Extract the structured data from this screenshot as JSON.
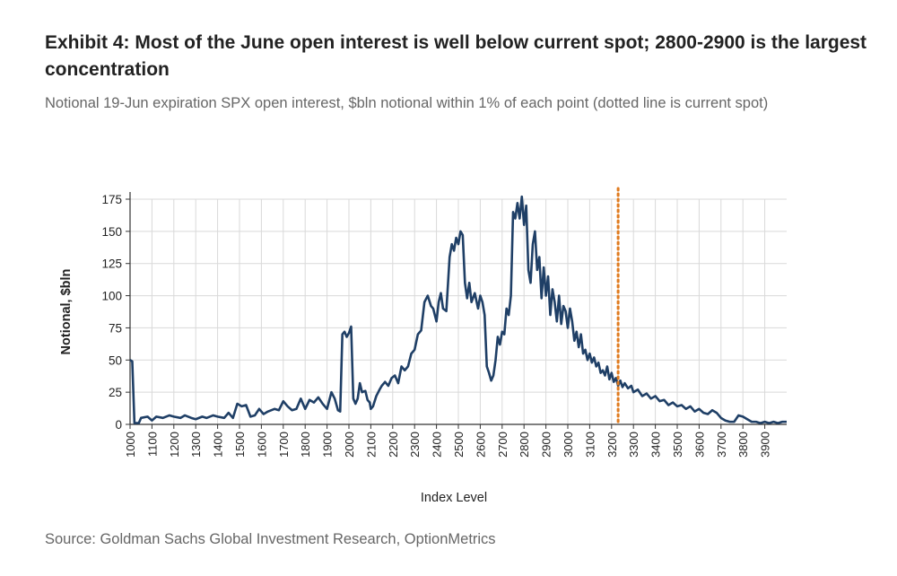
{
  "header": {
    "title": "Exhibit 4: Most of the June open interest is well below current spot; 2800-2900 is the largest concentration",
    "subtitle": "Notional 19-Jun expiration SPX open interest, $bln notional within 1% of each point (dotted line is current spot)"
  },
  "footer": {
    "source": "Source: Goldman Sachs Global Investment Research, OptionMetrics"
  },
  "chart_data": {
    "type": "line",
    "xlabel": "Index Level",
    "ylabel": "Notional, $bln",
    "xlim": [
      1000,
      4000
    ],
    "ylim": [
      0,
      175
    ],
    "y_ticks": [
      0,
      25,
      50,
      75,
      100,
      125,
      150,
      175
    ],
    "x_ticks": [
      1000,
      1100,
      1200,
      1300,
      1400,
      1500,
      1600,
      1700,
      1800,
      1900,
      2000,
      2100,
      2200,
      2300,
      2400,
      2500,
      2600,
      2700,
      2800,
      2900,
      3000,
      3100,
      3200,
      3300,
      3400,
      3500,
      3600,
      3700,
      3800,
      3900
    ],
    "grid": true,
    "line_color": "#1f3f66",
    "spot_line": {
      "x": 3230,
      "color": "#e07b1f",
      "style": "dotted"
    },
    "series": [
      {
        "points": [
          [
            1000,
            50
          ],
          [
            1010,
            49
          ],
          [
            1020,
            1
          ],
          [
            1040,
            1
          ],
          [
            1050,
            5
          ],
          [
            1080,
            6
          ],
          [
            1100,
            3
          ],
          [
            1120,
            6
          ],
          [
            1150,
            5
          ],
          [
            1180,
            7
          ],
          [
            1200,
            6
          ],
          [
            1230,
            5
          ],
          [
            1250,
            7
          ],
          [
            1280,
            5
          ],
          [
            1300,
            4
          ],
          [
            1330,
            6
          ],
          [
            1350,
            5
          ],
          [
            1380,
            7
          ],
          [
            1400,
            6
          ],
          [
            1430,
            5
          ],
          [
            1450,
            9
          ],
          [
            1470,
            5
          ],
          [
            1490,
            16
          ],
          [
            1510,
            14
          ],
          [
            1530,
            15
          ],
          [
            1550,
            6
          ],
          [
            1570,
            7
          ],
          [
            1590,
            12
          ],
          [
            1610,
            8
          ],
          [
            1630,
            10
          ],
          [
            1660,
            12
          ],
          [
            1680,
            11
          ],
          [
            1700,
            18
          ],
          [
            1720,
            14
          ],
          [
            1740,
            11
          ],
          [
            1760,
            12
          ],
          [
            1780,
            20
          ],
          [
            1800,
            12
          ],
          [
            1820,
            19
          ],
          [
            1840,
            17
          ],
          [
            1860,
            21
          ],
          [
            1880,
            16
          ],
          [
            1900,
            12
          ],
          [
            1920,
            25
          ],
          [
            1935,
            20
          ],
          [
            1950,
            11
          ],
          [
            1960,
            10
          ],
          [
            1970,
            70
          ],
          [
            1980,
            72
          ],
          [
            1990,
            68
          ],
          [
            2000,
            71
          ],
          [
            2010,
            76
          ],
          [
            2020,
            20
          ],
          [
            2030,
            16
          ],
          [
            2040,
            20
          ],
          [
            2050,
            32
          ],
          [
            2060,
            25
          ],
          [
            2075,
            26
          ],
          [
            2085,
            19
          ],
          [
            2095,
            17
          ],
          [
            2100,
            12
          ],
          [
            2110,
            14
          ],
          [
            2125,
            22
          ],
          [
            2140,
            27
          ],
          [
            2150,
            30
          ],
          [
            2165,
            33
          ],
          [
            2180,
            30
          ],
          [
            2195,
            36
          ],
          [
            2210,
            38
          ],
          [
            2225,
            32
          ],
          [
            2240,
            45
          ],
          [
            2255,
            42
          ],
          [
            2270,
            45
          ],
          [
            2285,
            55
          ],
          [
            2300,
            58
          ],
          [
            2315,
            70
          ],
          [
            2330,
            73
          ],
          [
            2345,
            95
          ],
          [
            2360,
            100
          ],
          [
            2375,
            92
          ],
          [
            2385,
            90
          ],
          [
            2400,
            80
          ],
          [
            2410,
            95
          ],
          [
            2420,
            102
          ],
          [
            2430,
            90
          ],
          [
            2445,
            88
          ],
          [
            2460,
            130
          ],
          [
            2470,
            140
          ],
          [
            2480,
            135
          ],
          [
            2490,
            145
          ],
          [
            2500,
            140
          ],
          [
            2510,
            150
          ],
          [
            2520,
            147
          ],
          [
            2530,
            110
          ],
          [
            2540,
            98
          ],
          [
            2550,
            110
          ],
          [
            2560,
            95
          ],
          [
            2575,
            102
          ],
          [
            2590,
            90
          ],
          [
            2600,
            100
          ],
          [
            2610,
            95
          ],
          [
            2620,
            85
          ],
          [
            2630,
            45
          ],
          [
            2640,
            40
          ],
          [
            2650,
            34
          ],
          [
            2660,
            38
          ],
          [
            2670,
            50
          ],
          [
            2680,
            68
          ],
          [
            2690,
            62
          ],
          [
            2700,
            72
          ],
          [
            2710,
            70
          ],
          [
            2720,
            90
          ],
          [
            2730,
            85
          ],
          [
            2740,
            100
          ],
          [
            2750,
            165
          ],
          [
            2760,
            160
          ],
          [
            2770,
            172
          ],
          [
            2780,
            160
          ],
          [
            2790,
            177
          ],
          [
            2800,
            155
          ],
          [
            2810,
            170
          ],
          [
            2820,
            120
          ],
          [
            2830,
            110
          ],
          [
            2840,
            140
          ],
          [
            2850,
            150
          ],
          [
            2860,
            120
          ],
          [
            2870,
            130
          ],
          [
            2880,
            98
          ],
          [
            2890,
            122
          ],
          [
            2900,
            100
          ],
          [
            2910,
            115
          ],
          [
            2920,
            85
          ],
          [
            2930,
            105
          ],
          [
            2940,
            95
          ],
          [
            2950,
            80
          ],
          [
            2960,
            100
          ],
          [
            2970,
            78
          ],
          [
            2980,
            92
          ],
          [
            2990,
            88
          ],
          [
            3000,
            75
          ],
          [
            3010,
            90
          ],
          [
            3020,
            80
          ],
          [
            3030,
            65
          ],
          [
            3040,
            72
          ],
          [
            3050,
            60
          ],
          [
            3060,
            70
          ],
          [
            3070,
            55
          ],
          [
            3080,
            58
          ],
          [
            3090,
            50
          ],
          [
            3100,
            55
          ],
          [
            3110,
            48
          ],
          [
            3120,
            52
          ],
          [
            3130,
            45
          ],
          [
            3140,
            48
          ],
          [
            3150,
            40
          ],
          [
            3160,
            42
          ],
          [
            3170,
            38
          ],
          [
            3180,
            45
          ],
          [
            3190,
            35
          ],
          [
            3200,
            40
          ],
          [
            3210,
            33
          ],
          [
            3220,
            36
          ],
          [
            3230,
            30
          ],
          [
            3240,
            34
          ],
          [
            3250,
            29
          ],
          [
            3260,
            32
          ],
          [
            3275,
            28
          ],
          [
            3290,
            30
          ],
          [
            3300,
            25
          ],
          [
            3320,
            27
          ],
          [
            3340,
            22
          ],
          [
            3360,
            24
          ],
          [
            3380,
            20
          ],
          [
            3400,
            22
          ],
          [
            3420,
            18
          ],
          [
            3440,
            19
          ],
          [
            3460,
            15
          ],
          [
            3480,
            17
          ],
          [
            3500,
            14
          ],
          [
            3520,
            15
          ],
          [
            3540,
            12
          ],
          [
            3560,
            14
          ],
          [
            3580,
            10
          ],
          [
            3600,
            12
          ],
          [
            3620,
            9
          ],
          [
            3640,
            8
          ],
          [
            3660,
            11
          ],
          [
            3680,
            9
          ],
          [
            3700,
            5
          ],
          [
            3720,
            3
          ],
          [
            3740,
            2
          ],
          [
            3760,
            2
          ],
          [
            3780,
            7
          ],
          [
            3800,
            6
          ],
          [
            3820,
            4
          ],
          [
            3840,
            2
          ],
          [
            3860,
            2
          ],
          [
            3880,
            1
          ],
          [
            3900,
            2
          ],
          [
            3920,
            1
          ],
          [
            3940,
            2
          ],
          [
            3960,
            1
          ],
          [
            3980,
            2
          ],
          [
            4000,
            2
          ]
        ]
      }
    ]
  }
}
